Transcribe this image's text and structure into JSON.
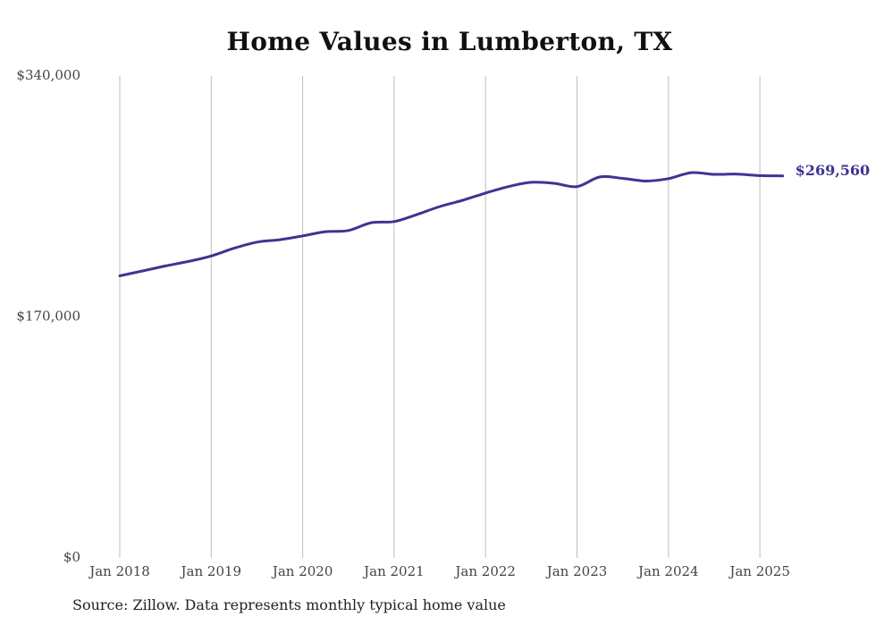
{
  "chart_data": {
    "type": "line",
    "title": "Home Values in Lumberton, TX",
    "xlabel": "",
    "ylabel": "",
    "ylim": [
      0,
      340000
    ],
    "y_ticks": [
      "$340,000",
      "$170,000",
      "$0"
    ],
    "y_tick_values": [
      340000,
      170000,
      0
    ],
    "x_ticks": [
      "Jan 2018",
      "Jan 2019",
      "Jan 2020",
      "Jan 2021",
      "Jan 2022",
      "Jan 2023",
      "Jan 2024",
      "Jan 2025"
    ],
    "x_range": [
      "2018-01",
      "2025-06"
    ],
    "grid": "vertical",
    "line_color": "#3d3591",
    "end_label": "$269,560",
    "series": [
      {
        "x": [
          "2018-01",
          "2018-04",
          "2018-07",
          "2018-10",
          "2019-01",
          "2019-04",
          "2019-07",
          "2019-10",
          "2020-01",
          "2020-04",
          "2020-07",
          "2020-10",
          "2021-01",
          "2021-04",
          "2021-07",
          "2021-10",
          "2022-01",
          "2022-04",
          "2022-07",
          "2022-10",
          "2023-01",
          "2023-04",
          "2023-07",
          "2023-10",
          "2024-01",
          "2024-04",
          "2024-07",
          "2024-10",
          "2025-01",
          "2025-04"
        ],
        "values": [
          199000,
          202500,
          206000,
          209200,
          213000,
          218500,
          222800,
          224500,
          227200,
          230200,
          231000,
          236500,
          237300,
          242300,
          247900,
          252300,
          257400,
          262000,
          265000,
          264300,
          262000,
          268800,
          267800,
          265900,
          267600,
          271800,
          270600,
          270800,
          269700,
          269560
        ]
      }
    ]
  },
  "source_note": "Source: Zillow. Data represents monthly typical home value"
}
